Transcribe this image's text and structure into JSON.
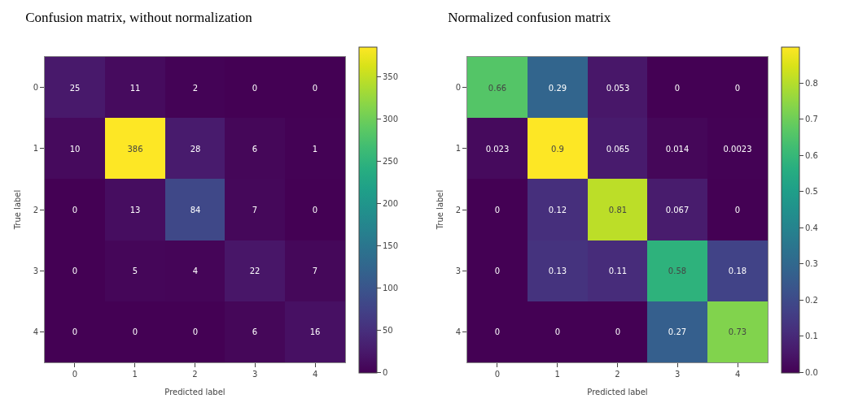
{
  "chart_data": [
    {
      "type": "heatmap",
      "title": "Confusion matrix, without normalization",
      "xlabel": "Predicted label",
      "ylabel": "True label",
      "categories": [
        "0",
        "1",
        "2",
        "3",
        "4"
      ],
      "y_categories": [
        "0",
        "1",
        "2",
        "3",
        "4"
      ],
      "cells": [
        [
          25,
          11,
          2,
          0,
          0
        ],
        [
          10,
          386,
          28,
          6,
          1
        ],
        [
          0,
          13,
          84,
          7,
          0
        ],
        [
          0,
          5,
          4,
          22,
          7
        ],
        [
          0,
          0,
          0,
          6,
          16
        ]
      ],
      "data_labels": true,
      "clim": [
        0,
        386
      ],
      "cticks": [
        0,
        50,
        100,
        150,
        200,
        250,
        300,
        350
      ]
    },
    {
      "type": "heatmap",
      "title": "Normalized confusion matrix",
      "xlabel": "Predicted label",
      "ylabel": "True label",
      "categories": [
        "0",
        "1",
        "2",
        "3",
        "4"
      ],
      "y_categories": [
        "0",
        "1",
        "2",
        "3",
        "4"
      ],
      "cells": [
        [
          0.66,
          0.29,
          0.053,
          0,
          0
        ],
        [
          0.023,
          0.9,
          0.065,
          0.014,
          0.0023
        ],
        [
          0,
          0.12,
          0.81,
          0.067,
          0
        ],
        [
          0,
          0.13,
          0.11,
          0.58,
          0.18
        ],
        [
          0,
          0,
          0,
          0.27,
          0.73
        ]
      ],
      "data_labels": true,
      "clim": [
        0,
        0.9
      ],
      "cticks": [
        {
          "value": 0,
          "label": "0.0"
        },
        0.1,
        0.2,
        0.3,
        0.4,
        0.5,
        0.6,
        0.7,
        0.8
      ]
    }
  ]
}
